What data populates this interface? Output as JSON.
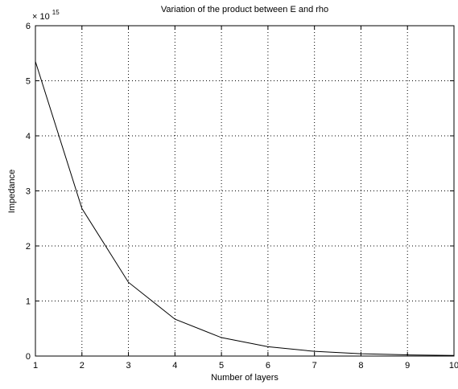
{
  "chart_data": {
    "type": "line",
    "title": "Variation of the product between E and rho",
    "xlabel": "Number of layers",
    "ylabel": "Impedance",
    "y_exponent_label": {
      "base": "× 10",
      "exponent": "15"
    },
    "xlim": [
      1,
      10
    ],
    "ylim": [
      0,
      6
    ],
    "x_ticks": [
      1,
      2,
      3,
      4,
      5,
      6,
      7,
      8,
      9,
      10
    ],
    "y_ticks": [
      0,
      1,
      2,
      3,
      4,
      5,
      6
    ],
    "grid": true,
    "grid_style": "dotted",
    "series": [
      {
        "x": [
          1,
          2,
          3,
          4,
          5,
          6,
          7,
          8,
          9,
          10
        ],
        "values": [
          5.35,
          2.68,
          1.34,
          0.67,
          0.335,
          0.17,
          0.085,
          0.042,
          0.021,
          0.01
        ],
        "color": "#000000"
      }
    ]
  }
}
